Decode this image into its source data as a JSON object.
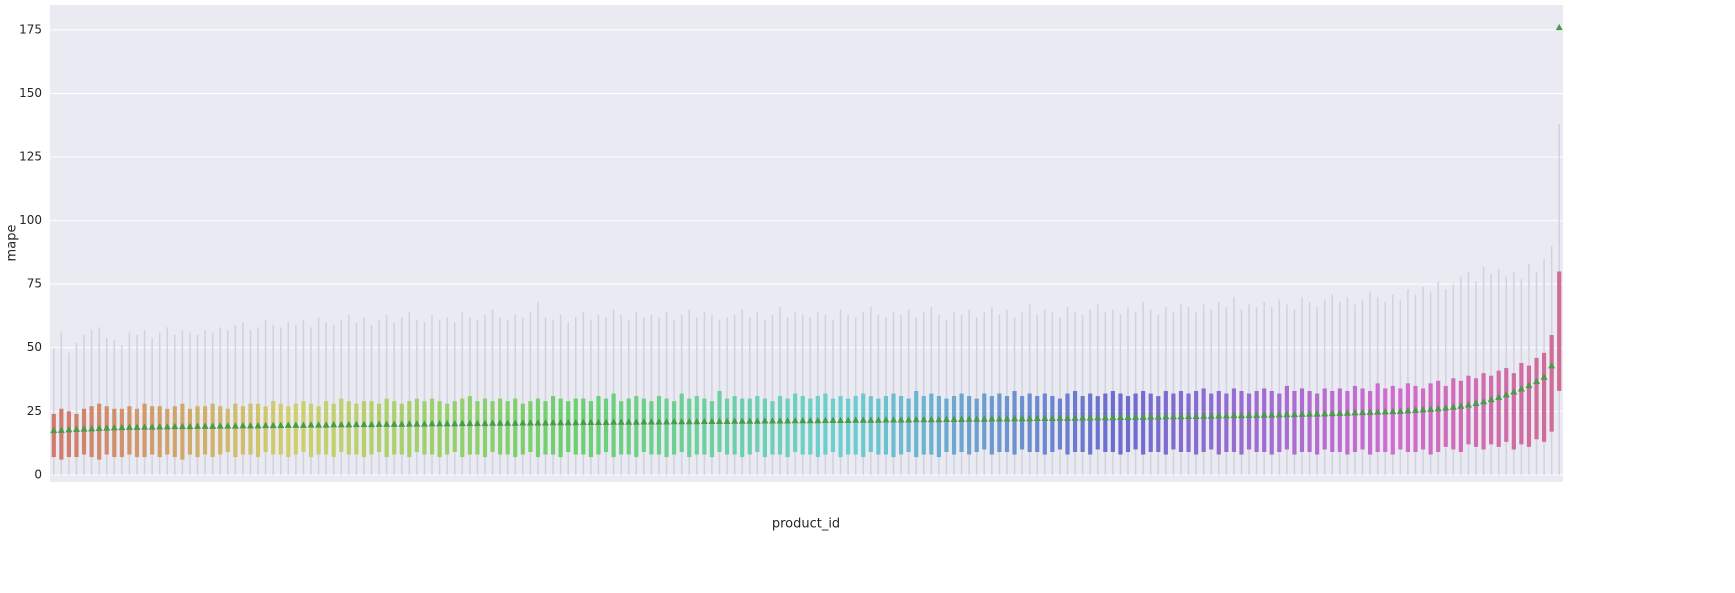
{
  "chart_data": {
    "type": "box",
    "x_label": "product_id",
    "y_label": "mape",
    "ylim": [
      -2.8,
      184.8
    ],
    "yticks": [
      0,
      25,
      50,
      75,
      100,
      125,
      150,
      175
    ],
    "grid": true,
    "palette": "husl",
    "whisker_color": "#d2d2de",
    "mean_color": "#4a9a4a",
    "categories": [
      null,
      null,
      null,
      null,
      null,
      null,
      null,
      null,
      null,
      null,
      null,
      null,
      null,
      null,
      null,
      null,
      null,
      null,
      null,
      null,
      null,
      null,
      null,
      null,
      null,
      null,
      null,
      null,
      null,
      null,
      null,
      null,
      null,
      null,
      null,
      null,
      null,
      null,
      null,
      null,
      null,
      null,
      null,
      null,
      null,
      null,
      null,
      null,
      null,
      null,
      null,
      null,
      null,
      null,
      null,
      null,
      null,
      null,
      null,
      null,
      null,
      null,
      null,
      null,
      null,
      null,
      null,
      null,
      null,
      null,
      null,
      null,
      null,
      null,
      null,
      null,
      null,
      null,
      null,
      null,
      null,
      null,
      null,
      null,
      null,
      null,
      null,
      null,
      null,
      null,
      null,
      null,
      null,
      null,
      null,
      null,
      null,
      null,
      null,
      null,
      null,
      null,
      null,
      null,
      null,
      null,
      null,
      null,
      null,
      null,
      null,
      null,
      null,
      null,
      null,
      null,
      null,
      null,
      null,
      null,
      null,
      null,
      null,
      null,
      null,
      null,
      null,
      null,
      null,
      null,
      null,
      null,
      null,
      null,
      null,
      null,
      null,
      null,
      null,
      null,
      null,
      null,
      null,
      null,
      null,
      null,
      null,
      null,
      null,
      null,
      null,
      null,
      null,
      null,
      null,
      null,
      null,
      null,
      null,
      null,
      null,
      null,
      null,
      null,
      null,
      null,
      null,
      null,
      null,
      null,
      null,
      null,
      null,
      null,
      null,
      null,
      null,
      null,
      null,
      null,
      null,
      null,
      null,
      null,
      null,
      null,
      null,
      null,
      null,
      null,
      null,
      null,
      null,
      null,
      null,
      null,
      null,
      null,
      null,
      null
    ],
    "mean": [
      17.5,
      17.6,
      17.8,
      18,
      18.1,
      18.2,
      18.4,
      18.5,
      18.6,
      18.7,
      18.8,
      18.8,
      18.9,
      18.9,
      19,
      19,
      19.1,
      19.1,
      19.1,
      19.2,
      19.2,
      19.2,
      19.3,
      19.3,
      19.3,
      19.4,
      19.4,
      19.4,
      19.5,
      19.5,
      19.5,
      19.6,
      19.6,
      19.6,
      19.7,
      19.7,
      19.7,
      19.8,
      19.8,
      19.8,
      19.9,
      19.9,
      19.9,
      20,
      20,
      20,
      20,
      20.1,
      20.1,
      20.1,
      20.2,
      20.2,
      20.2,
      20.2,
      20.3,
      20.3,
      20.3,
      20.3,
      20.4,
      20.4,
      20.4,
      20.4,
      20.5,
      20.5,
      20.5,
      20.5,
      20.6,
      20.6,
      20.6,
      20.6,
      20.7,
      20.7,
      20.7,
      20.7,
      20.8,
      20.8,
      20.8,
      20.8,
      20.9,
      20.9,
      20.9,
      20.9,
      21,
      21,
      21,
      21,
      21.1,
      21.1,
      21.1,
      21.1,
      21.2,
      21.2,
      21.2,
      21.2,
      21.3,
      21.3,
      21.3,
      21.3,
      21.4,
      21.4,
      21.4,
      21.4,
      21.5,
      21.5,
      21.5,
      21.5,
      21.6,
      21.6,
      21.6,
      21.6,
      21.7,
      21.7,
      21.7,
      21.7,
      21.8,
      21.8,
      21.8,
      21.8,
      21.9,
      21.9,
      21.9,
      22,
      22,
      22,
      22.1,
      22.1,
      22.1,
      22.2,
      22.2,
      22.2,
      22.3,
      22.3,
      22.3,
      22.4,
      22.4,
      22.4,
      22.5,
      22.5,
      22.6,
      22.6,
      22.6,
      22.7,
      22.7,
      22.8,
      22.8,
      22.9,
      22.9,
      23,
      23,
      23,
      23.1,
      23.1,
      23.2,
      23.2,
      23.3,
      23.3,
      23.4,
      23.4,
      23.5,
      23.5,
      23.6,
      23.6,
      23.7,
      23.8,
      23.8,
      23.9,
      24,
      24,
      24.1,
      24.2,
      24.3,
      24.4,
      24.5,
      24.6,
      24.7,
      24.8,
      24.9,
      25,
      25.1,
      25.3,
      25.5,
      25.7,
      25.9,
      26.1,
      26.4,
      26.7,
      27.1,
      27.6,
      28.2,
      28.9,
      29.7,
      30.6,
      31.6,
      32.7,
      33.9,
      35.2,
      36.8,
      38.5,
      43,
      176
    ],
    "q3": [
      24,
      26,
      25,
      24,
      26,
      27,
      28,
      27,
      26,
      26,
      27,
      26,
      28,
      27,
      27,
      26,
      27,
      28,
      26,
      27,
      27,
      28,
      27,
      26,
      28,
      27,
      28,
      28,
      27,
      29,
      28,
      27,
      28,
      29,
      28,
      27,
      29,
      28,
      30,
      29,
      28,
      29,
      29,
      28,
      30,
      29,
      28,
      29,
      30,
      29,
      30,
      29,
      28,
      29,
      30,
      31,
      29,
      30,
      29,
      30,
      29,
      30,
      28,
      29,
      30,
      29,
      31,
      30,
      29,
      30,
      30,
      29,
      31,
      30,
      32,
      29,
      30,
      31,
      30,
      29,
      31,
      30,
      29,
      32,
      30,
      31,
      30,
      29,
      33,
      30,
      31,
      30,
      30,
      31,
      30,
      29,
      31,
      30,
      32,
      31,
      30,
      31,
      32,
      30,
      31,
      30,
      31,
      32,
      31,
      30,
      31,
      32,
      31,
      30,
      33,
      31,
      32,
      31,
      30,
      31,
      32,
      31,
      30,
      32,
      31,
      32,
      31,
      33,
      31,
      32,
      31,
      32,
      31,
      30,
      32,
      33,
      31,
      32,
      31,
      32,
      33,
      32,
      31,
      32,
      33,
      32,
      31,
      33,
      32,
      33,
      32,
      33,
      34,
      32,
      33,
      32,
      34,
      33,
      32,
      33,
      34,
      33,
      32,
      35,
      33,
      34,
      33,
      32,
      34,
      33,
      34,
      33,
      35,
      34,
      33,
      36,
      34,
      35,
      34,
      36,
      35,
      34,
      36,
      37,
      35,
      38,
      37,
      39,
      38,
      40,
      39,
      41,
      42,
      40,
      44,
      43,
      46,
      48,
      55,
      80
    ],
    "q1": [
      7,
      6,
      7,
      7,
      8,
      7,
      6,
      8,
      7,
      7,
      8,
      7,
      7,
      8,
      7,
      8,
      7,
      6,
      8,
      7,
      8,
      7,
      8,
      9,
      7,
      8,
      8,
      7,
      9,
      8,
      8,
      7,
      8,
      9,
      7,
      8,
      8,
      7,
      9,
      8,
      8,
      7,
      8,
      9,
      7,
      8,
      8,
      7,
      9,
      8,
      8,
      7,
      8,
      9,
      7,
      8,
      8,
      7,
      9,
      8,
      8,
      7,
      8,
      9,
      7,
      8,
      8,
      7,
      9,
      8,
      8,
      7,
      8,
      9,
      7,
      8,
      8,
      7,
      9,
      8,
      8,
      7,
      8,
      9,
      7,
      8,
      8,
      7,
      9,
      8,
      8,
      7,
      8,
      9,
      7,
      8,
      8,
      7,
      9,
      8,
      8,
      7,
      8,
      9,
      7,
      8,
      8,
      7,
      9,
      8,
      8,
      7,
      8,
      9,
      7,
      8,
      8,
      7,
      9,
      8,
      9,
      8,
      9,
      10,
      8,
      9,
      9,
      8,
      10,
      9,
      9,
      8,
      9,
      10,
      8,
      9,
      9,
      8,
      10,
      9,
      9,
      8,
      9,
      10,
      8,
      9,
      9,
      8,
      10,
      9,
      9,
      8,
      9,
      10,
      8,
      9,
      9,
      8,
      10,
      9,
      9,
      8,
      9,
      10,
      8,
      9,
      9,
      8,
      10,
      9,
      9,
      8,
      9,
      10,
      8,
      9,
      9,
      8,
      10,
      9,
      9,
      10,
      8,
      9,
      11,
      10,
      9,
      12,
      11,
      10,
      12,
      11,
      13,
      10,
      12,
      11,
      14,
      13,
      17,
      33
    ],
    "whislo": [
      0,
      0,
      0,
      0,
      0,
      0,
      0,
      0,
      0,
      0,
      0,
      0,
      0,
      0,
      0,
      0,
      0,
      0,
      0,
      0,
      0,
      0,
      0,
      0,
      0,
      0,
      0,
      0,
      0,
      0,
      0,
      0,
      0,
      0,
      0,
      0,
      0,
      0,
      0,
      0,
      0,
      0,
      0,
      0,
      0,
      0,
      0,
      0,
      0,
      0,
      0,
      0,
      0,
      0,
      0,
      0,
      0,
      0,
      0,
      0,
      0,
      0,
      0,
      0,
      0,
      0,
      0,
      0,
      0,
      0,
      0,
      0,
      0,
      0,
      0,
      0,
      0,
      0,
      0,
      0,
      0,
      0,
      0,
      0,
      0,
      0,
      0,
      0,
      0,
      0,
      0,
      0,
      0,
      0,
      0,
      0,
      0,
      0,
      0,
      0,
      0,
      0,
      0,
      0,
      0,
      0,
      0,
      0,
      0,
      0,
      0,
      0,
      0,
      0,
      0,
      0,
      0,
      0,
      0,
      0,
      0,
      0,
      0,
      0,
      0,
      0,
      0,
      0,
      0,
      0,
      0,
      0,
      0,
      0,
      0,
      0,
      0,
      0,
      0,
      0,
      0,
      0,
      0,
      0,
      0,
      0,
      0,
      0,
      0,
      0,
      0,
      0,
      0,
      0,
      0,
      0,
      0,
      0,
      0,
      0,
      0,
      0,
      0,
      0,
      0,
      0,
      0,
      0,
      0,
      0,
      0,
      0,
      0,
      0,
      0,
      0,
      0,
      0,
      0,
      0,
      0,
      0,
      0,
      0,
      0,
      0,
      0,
      0,
      0,
      0,
      0,
      0,
      0,
      0,
      0,
      0,
      0,
      0,
      0,
      0
    ],
    "whishi": [
      50,
      56,
      48,
      52,
      55,
      57,
      58,
      54,
      53,
      51,
      56,
      55,
      57,
      54,
      56,
      58,
      55,
      57,
      56,
      55,
      57,
      56,
      58,
      57,
      59,
      60,
      57,
      58,
      61,
      59,
      58,
      60,
      59,
      61,
      58,
      62,
      60,
      59,
      61,
      63,
      60,
      62,
      59,
      61,
      63,
      60,
      62,
      64,
      61,
      60,
      63,
      61,
      62,
      60,
      64,
      62,
      61,
      63,
      65,
      62,
      61,
      63,
      62,
      64,
      68,
      62,
      61,
      63,
      60,
      62,
      64,
      61,
      63,
      62,
      65,
      63,
      61,
      64,
      62,
      63,
      62,
      64,
      61,
      63,
      65,
      62,
      64,
      63,
      61,
      62,
      63,
      65,
      62,
      64,
      61,
      63,
      66,
      62,
      64,
      63,
      62,
      64,
      63,
      61,
      65,
      63,
      62,
      64,
      66,
      63,
      62,
      64,
      63,
      65,
      62,
      64,
      66,
      63,
      61,
      64,
      63,
      65,
      62,
      64,
      66,
      63,
      65,
      62,
      64,
      67,
      63,
      65,
      64,
      62,
      66,
      64,
      63,
      65,
      67,
      64,
      65,
      63,
      66,
      64,
      68,
      65,
      63,
      66,
      64,
      67,
      66,
      64,
      67,
      65,
      68,
      66,
      70,
      65,
      67,
      66,
      68,
      66,
      69,
      67,
      65,
      70,
      68,
      66,
      69,
      71,
      68,
      70,
      67,
      69,
      72,
      70,
      68,
      71,
      69,
      73,
      71,
      74,
      72,
      76,
      73,
      75,
      78,
      80,
      76,
      82,
      79,
      81,
      78,
      80,
      77,
      83,
      80,
      85,
      90,
      138
    ]
  }
}
